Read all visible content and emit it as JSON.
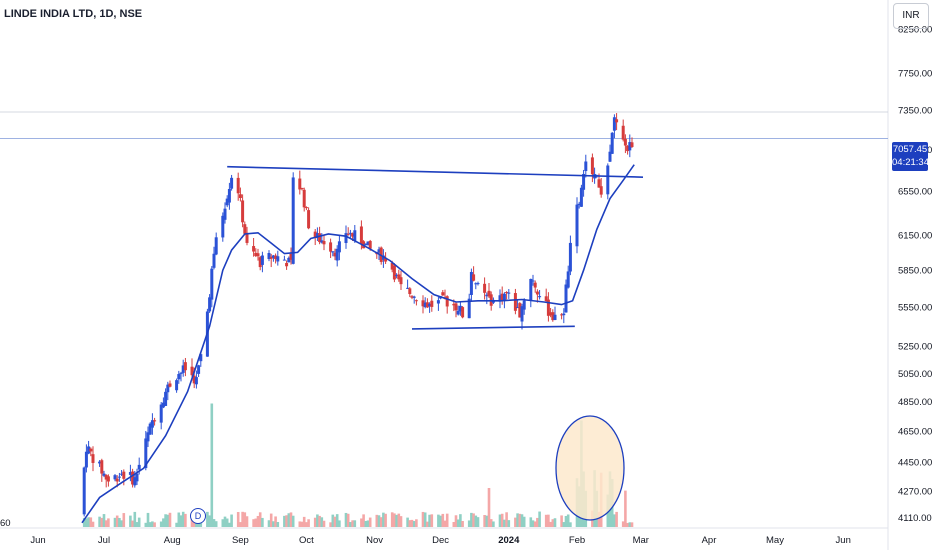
{
  "title": "LINDE INDIA LTD, 1D, NSE",
  "currency": "INR",
  "price_tag": {
    "price": "7057.45",
    "countdown": "04:21:34"
  },
  "dividend_marker": "D",
  "left_edge_label": "60",
  "colors": {
    "up": "#2b52d6",
    "down": "#d63c3c",
    "ma": "#1d3fbf",
    "trendline": "#1d3fbf",
    "volume_up": "#8fd0c4",
    "volume_down": "#f4a7a7",
    "highlight_fill": "#fde9cc",
    "highlight_stroke": "#1d3fbf"
  },
  "chart_data": {
    "type": "candlestick",
    "title": "LINDE INDIA LTD, 1D, NSE",
    "y_axis": {
      "range": [
        4050,
        8600
      ],
      "ticks": [
        "8250.00",
        "7750.00",
        "7350.00",
        "6950.00",
        "6550.00",
        "6150.00",
        "5850.00",
        "5550.00",
        "5250.00",
        "5050.00",
        "4850.00",
        "4650.00",
        "4450.00",
        "4270.00",
        "4110.00"
      ],
      "scale": "log",
      "position": "right"
    },
    "x_axis": {
      "labels": [
        "Jun",
        "Jul",
        "Aug",
        "Sep",
        "Oct",
        "Nov",
        "Dec",
        "2024",
        "Feb",
        "Mar",
        "Apr",
        "May",
        "Jun"
      ],
      "label_positions_days": [
        0,
        30,
        61,
        92,
        122,
        153,
        183,
        214,
        245,
        274,
        305,
        335,
        366
      ]
    },
    "last_price": 7057.45,
    "price_anchors": [
      {
        "day": 19,
        "price": 4130
      },
      {
        "day": 22,
        "price": 4550
      },
      {
        "day": 25,
        "price": 4480
      },
      {
        "day": 32,
        "price": 4330
      },
      {
        "day": 38,
        "price": 4380
      },
      {
        "day": 44,
        "price": 4340
      },
      {
        "day": 52,
        "price": 4720
      },
      {
        "day": 58,
        "price": 4920
      },
      {
        "day": 62,
        "price": 5030
      },
      {
        "day": 67,
        "price": 5080
      },
      {
        "day": 72,
        "price": 5000
      },
      {
        "day": 76,
        "price": 5350
      },
      {
        "day": 80,
        "price": 6000
      },
      {
        "day": 84,
        "price": 6350
      },
      {
        "day": 88,
        "price": 6700
      },
      {
        "day": 91,
        "price": 6560
      },
      {
        "day": 95,
        "price": 6050
      },
      {
        "day": 101,
        "price": 5920
      },
      {
        "day": 107,
        "price": 5970
      },
      {
        "day": 112,
        "price": 5940
      },
      {
        "day": 115,
        "price": 5900
      },
      {
        "day": 116,
        "price": 6700
      },
      {
        "day": 120,
        "price": 6550
      },
      {
        "day": 124,
        "price": 6150
      },
      {
        "day": 130,
        "price": 6100
      },
      {
        "day": 136,
        "price": 6000
      },
      {
        "day": 140,
        "price": 6180
      },
      {
        "day": 146,
        "price": 6120
      },
      {
        "day": 152,
        "price": 6000
      },
      {
        "day": 159,
        "price": 5950
      },
      {
        "day": 165,
        "price": 5700
      },
      {
        "day": 171,
        "price": 5650
      },
      {
        "day": 178,
        "price": 5560
      },
      {
        "day": 185,
        "price": 5600
      },
      {
        "day": 191,
        "price": 5550
      },
      {
        "day": 195,
        "price": 5430
      },
      {
        "day": 197,
        "price": 5850
      },
      {
        "day": 201,
        "price": 5650
      },
      {
        "day": 207,
        "price": 5600
      },
      {
        "day": 213,
        "price": 5660
      },
      {
        "day": 219,
        "price": 5500
      },
      {
        "day": 224,
        "price": 5800
      },
      {
        "day": 229,
        "price": 5600
      },
      {
        "day": 235,
        "price": 5450
      },
      {
        "day": 239,
        "price": 5530
      },
      {
        "day": 243,
        "price": 6200
      },
      {
        "day": 247,
        "price": 6550
      },
      {
        "day": 250,
        "price": 6900
      },
      {
        "day": 253,
        "price": 6700
      },
      {
        "day": 256,
        "price": 6550
      },
      {
        "day": 259,
        "price": 6750
      },
      {
        "day": 262,
        "price": 7250
      },
      {
        "day": 265,
        "price": 7050
      },
      {
        "day": 268,
        "price": 6950
      },
      {
        "day": 271,
        "price": 7050
      }
    ],
    "moving_average": [
      {
        "day": 20,
        "value": 4080
      },
      {
        "day": 28,
        "value": 4230
      },
      {
        "day": 38,
        "value": 4320
      },
      {
        "day": 48,
        "value": 4410
      },
      {
        "day": 58,
        "value": 4620
      },
      {
        "day": 68,
        "value": 4920
      },
      {
        "day": 78,
        "value": 5400
      },
      {
        "day": 84,
        "value": 5850
      },
      {
        "day": 88,
        "value": 6020
      },
      {
        "day": 94,
        "value": 6160
      },
      {
        "day": 100,
        "value": 6170
      },
      {
        "day": 106,
        "value": 6080
      },
      {
        "day": 112,
        "value": 5990
      },
      {
        "day": 118,
        "value": 6000
      },
      {
        "day": 124,
        "value": 6120
      },
      {
        "day": 132,
        "value": 6160
      },
      {
        "day": 140,
        "value": 6140
      },
      {
        "day": 150,
        "value": 6040
      },
      {
        "day": 160,
        "value": 5930
      },
      {
        "day": 170,
        "value": 5780
      },
      {
        "day": 180,
        "value": 5650
      },
      {
        "day": 190,
        "value": 5590
      },
      {
        "day": 200,
        "value": 5600
      },
      {
        "day": 210,
        "value": 5600
      },
      {
        "day": 220,
        "value": 5610
      },
      {
        "day": 230,
        "value": 5590
      },
      {
        "day": 238,
        "value": 5570
      },
      {
        "day": 243,
        "value": 5600
      },
      {
        "day": 248,
        "value": 5850
      },
      {
        "day": 254,
        "value": 6200
      },
      {
        "day": 260,
        "value": 6480
      },
      {
        "day": 266,
        "value": 6650
      },
      {
        "day": 271,
        "value": 6800
      }
    ],
    "trendlines": [
      {
        "name": "resistance",
        "from": {
          "day": 86,
          "price": 6780
        },
        "to": {
          "day": 275,
          "price": 6680
        }
      },
      {
        "name": "support",
        "from": {
          "day": 170,
          "price": 5380
        },
        "to": {
          "day": 244,
          "price": 5400
        }
      }
    ],
    "volume_spikes": [
      {
        "day": 79,
        "height": 0.95
      },
      {
        "day": 117,
        "height": 0.7
      },
      {
        "day": 160,
        "height": 0.72
      },
      {
        "day": 205,
        "height": 0.3
      },
      {
        "day": 230,
        "height": 0.28
      },
      {
        "day": 247,
        "height": 0.82
      },
      {
        "day": 251,
        "height": 0.58
      },
      {
        "day": 267,
        "height": 0.28
      }
    ],
    "highlight": {
      "label": "volume surge",
      "center_day": 250,
      "shape": "ellipse"
    }
  }
}
